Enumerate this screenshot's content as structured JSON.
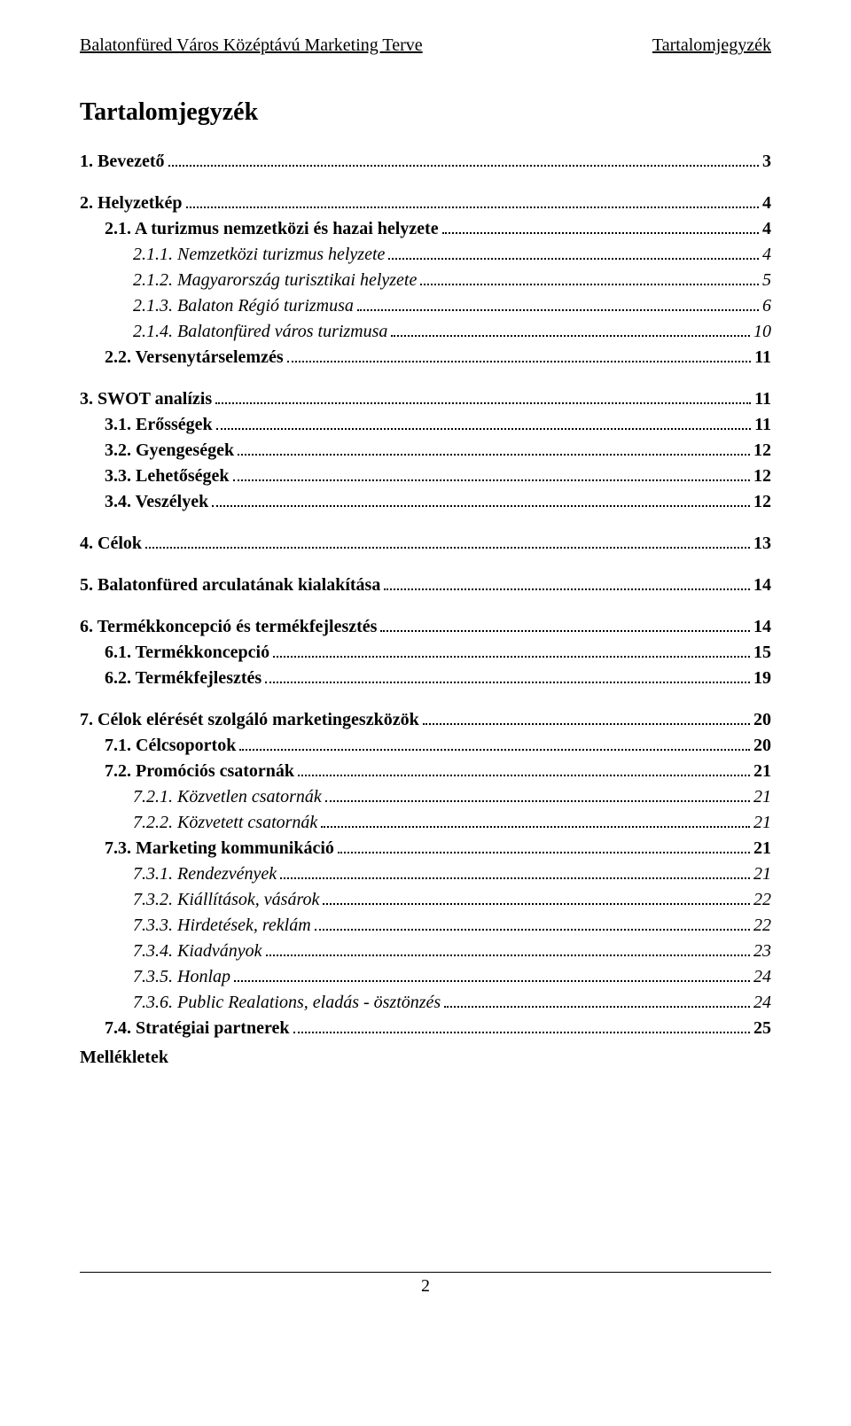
{
  "header": {
    "left": "Balatonfüred Város Középtávú Marketing Terve",
    "right": "Tartalomjegyzék"
  },
  "title": "Tartalomjegyzék",
  "toc": [
    {
      "label": "1. Bevezető",
      "page": "3",
      "level": 0,
      "bold": true
    },
    {
      "label": "2. Helyzetkép",
      "page": "4",
      "level": 0,
      "bold": true
    },
    {
      "label": "2.1. A turizmus nemzetközi és hazai helyzete",
      "page": "4",
      "level": 1,
      "bold": true
    },
    {
      "label": "2.1.1. Nemzetközi turizmus helyzete",
      "page": "4",
      "level": 2,
      "italic": true
    },
    {
      "label": "2.1.2. Magyarország turisztikai helyzete",
      "page": "5",
      "level": 2,
      "italic": true
    },
    {
      "label": "2.1.3. Balaton Régió turizmusa",
      "page": "6",
      "level": 2,
      "italic": true
    },
    {
      "label": "2.1.4. Balatonfüred város turizmusa",
      "page": "10",
      "level": 2,
      "italic": true
    },
    {
      "label": "2.2. Versenytárselemzés",
      "page": "11",
      "level": 1,
      "bold": true
    },
    {
      "label": "3. SWOT analízis",
      "page": "11",
      "level": 0,
      "bold": true
    },
    {
      "label": "3.1. Erősségek",
      "page": "11",
      "level": 1,
      "bold": true
    },
    {
      "label": "3.2. Gyengeségek",
      "page": "12",
      "level": 1,
      "bold": true
    },
    {
      "label": "3.3. Lehetőségek",
      "page": "12",
      "level": 1,
      "bold": true
    },
    {
      "label": "3.4. Veszélyek",
      "page": "12",
      "level": 1,
      "bold": true
    },
    {
      "label": "4. Célok",
      "page": "13",
      "level": 0,
      "bold": true
    },
    {
      "label": "5. Balatonfüred arculatának kialakítása",
      "page": "14",
      "level": 0,
      "bold": true
    },
    {
      "label": "6. Termékkoncepció és termékfejlesztés",
      "page": "14",
      "level": 0,
      "bold": true
    },
    {
      "label": "6.1. Termékkoncepció",
      "page": "15",
      "level": 1,
      "bold": true
    },
    {
      "label": "6.2. Termékfejlesztés",
      "page": "19",
      "level": 1,
      "bold": true
    },
    {
      "label": "7. Célok elérését szolgáló marketingeszközök",
      "page": "20",
      "level": 0,
      "bold": true
    },
    {
      "label": "7.1. Célcsoportok",
      "page": "20",
      "level": 1,
      "bold": true
    },
    {
      "label": "7.2. Promóciós csatornák",
      "page": "21",
      "level": 1,
      "bold": true
    },
    {
      "label": "7.2.1. Közvetlen csatornák",
      "page": "21",
      "level": 2,
      "italic": true
    },
    {
      "label": "7.2.2. Közvetett csatornák",
      "page": "21",
      "level": 2,
      "italic": true
    },
    {
      "label": "7.3. Marketing kommunikáció",
      "page": "21",
      "level": 1,
      "bold": true
    },
    {
      "label": "7.3.1. Rendezvények",
      "page": "21",
      "level": 2,
      "italic": true
    },
    {
      "label": "7.3.2. Kiállítások, vásárok",
      "page": "22",
      "level": 2,
      "italic": true
    },
    {
      "label": "7.3.3. Hirdetések, reklám",
      "page": "22",
      "level": 2,
      "italic": true
    },
    {
      "label": "7.3.4. Kiadványok",
      "page": "23",
      "level": 2,
      "italic": true
    },
    {
      "label": "7.3.5. Honlap",
      "page": "24",
      "level": 2,
      "italic": true
    },
    {
      "label": "7.3.6. Public Realations, eladás - ösztönzés",
      "page": "24",
      "level": 2,
      "italic": true
    },
    {
      "label": "7.4. Stratégiai partnerek",
      "page": "25",
      "level": 1,
      "bold": true
    }
  ],
  "appendix": "Mellékletek",
  "footer": {
    "pageNumber": "2"
  }
}
